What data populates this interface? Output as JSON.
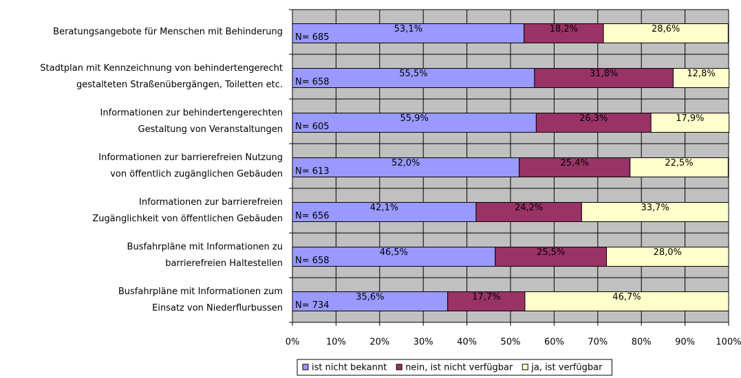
{
  "chart_data": {
    "type": "stacked-barh",
    "categories": [
      [
        "Beratungsangebote für Menschen mit Behinderung"
      ],
      [
        "Stadtplan mit Kennzeichnung von behindertengerecht",
        "gestalteten Straßenübergängen, Toiletten etc."
      ],
      [
        "Informationen zur behindertengerechten",
        "Gestaltung von Veranstaltungen"
      ],
      [
        "Informationen zur barrierefreien Nutzung",
        "von öffentlich zugänglichen Gebäuden"
      ],
      [
        "Informationen zur barrierefreien",
        "Zugänglichkeit von öffentlichen Gebäuden"
      ],
      [
        "Busfahrpläne mit Informationen zu",
        "barrierefreien Haltestellen"
      ],
      [
        "Busfahrpläne mit Informationen zum",
        "Einsatz von Niederflurbussen"
      ]
    ],
    "n_labels": [
      "N= 685",
      "N= 658",
      "N= 605",
      "N= 613",
      "N= 656",
      "N= 658",
      "N= 734"
    ],
    "series": [
      {
        "name": "ist nicht bekannt",
        "color": "#9999ff",
        "values": [
          53.1,
          55.5,
          55.9,
          52.0,
          42.1,
          46.5,
          35.6
        ],
        "value_labels": [
          "53,1%",
          "55,5%",
          "55,9%",
          "52,0%",
          "42,1%",
          "46,5%",
          "35,6%"
        ]
      },
      {
        "name": "nein, ist nicht verfügbar",
        "color": "#993366",
        "values": [
          18.2,
          31.8,
          26.3,
          25.4,
          24.2,
          25.5,
          17.7
        ],
        "value_labels": [
          "18,2%",
          "31,8%",
          "26,3%",
          "25,4%",
          "24,2%",
          "25,5%",
          "17,7%"
        ]
      },
      {
        "name": "ja, ist verfügbar",
        "color": "#ffffcc",
        "values": [
          28.6,
          12.8,
          17.9,
          22.5,
          33.7,
          28.0,
          46.7
        ],
        "value_labels": [
          "28,6%",
          "12,8%",
          "17,9%",
          "22,5%",
          "33,7%",
          "28,0%",
          "46,7%"
        ]
      }
    ],
    "xlim": [
      0,
      100
    ],
    "xticks": [
      {
        "value": 0,
        "label": "0%"
      },
      {
        "value": 10,
        "label": "10%"
      },
      {
        "value": 20,
        "label": "20%"
      },
      {
        "value": 30,
        "label": "30%"
      },
      {
        "value": 40,
        "label": "40%"
      },
      {
        "value": 50,
        "label": "50%"
      },
      {
        "value": 60,
        "label": "60%"
      },
      {
        "value": 70,
        "label": "70%"
      },
      {
        "value": 80,
        "label": "80%"
      },
      {
        "value": 90,
        "label": "90%"
      },
      {
        "value": 100,
        "label": "100%"
      }
    ],
    "grid": true,
    "legend": "bottom",
    "plot_background": "#c0c0c0"
  }
}
